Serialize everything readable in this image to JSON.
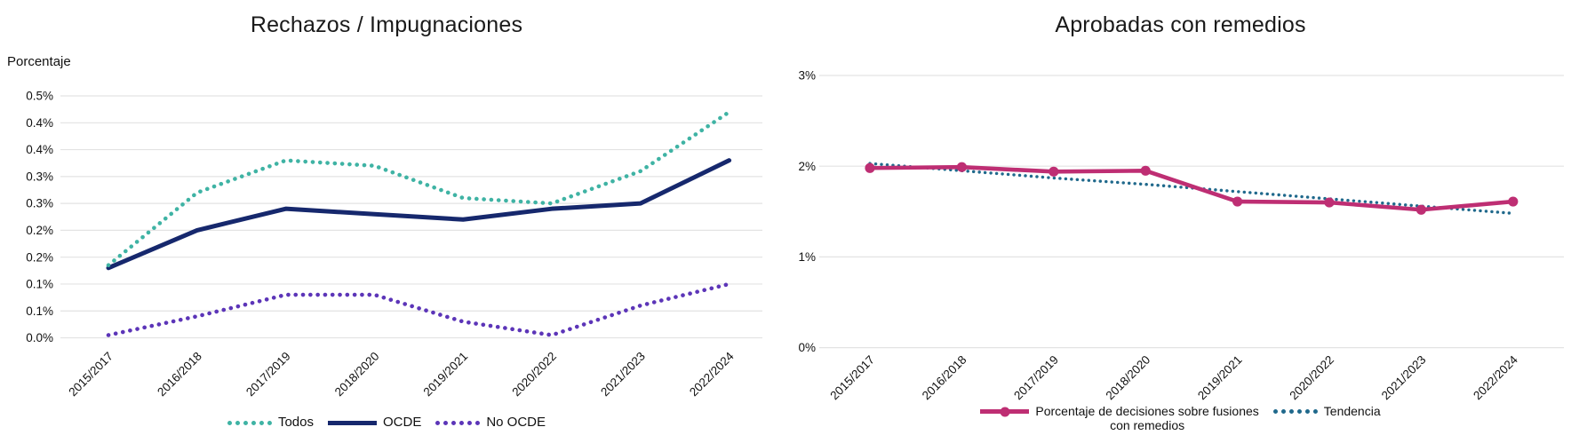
{
  "figure": {
    "background": "#ffffff",
    "text_color": "#111111",
    "grid_color": "#e3e3e3"
  },
  "chart_data": [
    {
      "type": "line",
      "title": "Rechazos / Impugnaciones",
      "ylabel": "Porcentaje",
      "xlabel": "",
      "grid": true,
      "legend_position": "bottom",
      "categories": [
        "2015/2017",
        "2016/2018",
        "2017/2019",
        "2018/2020",
        "2019/2021",
        "2020/2022",
        "2021/2023",
        "2022/2024"
      ],
      "ylim": [
        0,
        0.45
      ],
      "y_ticks": [
        {
          "value": 0.45,
          "label": "0.5%"
        },
        {
          "value": 0.4,
          "label": "0.4%"
        },
        {
          "value": 0.35,
          "label": "0.4%"
        },
        {
          "value": 0.3,
          "label": "0.3%"
        },
        {
          "value": 0.25,
          "label": "0.3%"
        },
        {
          "value": 0.2,
          "label": "0.2%"
        },
        {
          "value": 0.15,
          "label": "0.2%"
        },
        {
          "value": 0.1,
          "label": "0.1%"
        },
        {
          "value": 0.05,
          "label": "0.1%"
        },
        {
          "value": 0.0,
          "label": "0.0%"
        }
      ],
      "series": [
        {
          "name": "No OCDE",
          "color": "#5c35b8",
          "line_style": "dotted",
          "markers": false,
          "values": [
            0.005,
            0.04,
            0.08,
            0.08,
            0.03,
            0.005,
            0.06,
            0.1
          ]
        },
        {
          "name": "OCDE",
          "color": "#16286d",
          "line_style": "solid",
          "markers": false,
          "values": [
            0.13,
            0.2,
            0.24,
            0.23,
            0.22,
            0.24,
            0.25,
            0.33
          ]
        },
        {
          "name": "Todos",
          "color": "#3fb3a4",
          "line_style": "dotted",
          "markers": false,
          "values": [
            0.135,
            0.27,
            0.33,
            0.32,
            0.26,
            0.25,
            0.31,
            0.42
          ]
        }
      ],
      "legend_order": [
        "Todos",
        "OCDE",
        "No OCDE"
      ]
    },
    {
      "type": "line",
      "title": "Aprobadas con remedios",
      "ylabel": "",
      "xlabel": "",
      "grid": true,
      "legend_position": "bottom",
      "categories": [
        "2015/2017",
        "2016/2018",
        "2017/2019",
        "2018/2020",
        "2019/2021",
        "2020/2022",
        "2021/2023",
        "2022/2024"
      ],
      "ylim": [
        0,
        3
      ],
      "y_ticks": [
        {
          "value": 3,
          "label": "3%"
        },
        {
          "value": 2,
          "label": "2%"
        },
        {
          "value": 1,
          "label": "1%"
        },
        {
          "value": 0,
          "label": "0%"
        }
      ],
      "series": [
        {
          "name": "Tendencia",
          "color": "#20698c",
          "line_style": "dotted",
          "markers": false,
          "values": [
            2.03,
            1.95,
            1.87,
            1.8,
            1.72,
            1.64,
            1.56,
            1.48
          ]
        },
        {
          "name": "Porcentaje de decisiones sobre fusiones con remedios",
          "legend_lines": [
            "Porcentaje de decisiones sobre fusiones",
            "con remedios"
          ],
          "color": "#be2e73",
          "line_style": "solid",
          "markers": true,
          "values": [
            1.98,
            1.99,
            1.94,
            1.95,
            1.61,
            1.6,
            1.52,
            1.61
          ]
        }
      ],
      "legend_order": [
        "Porcentaje de decisiones sobre fusiones con remedios",
        "Tendencia"
      ]
    }
  ]
}
